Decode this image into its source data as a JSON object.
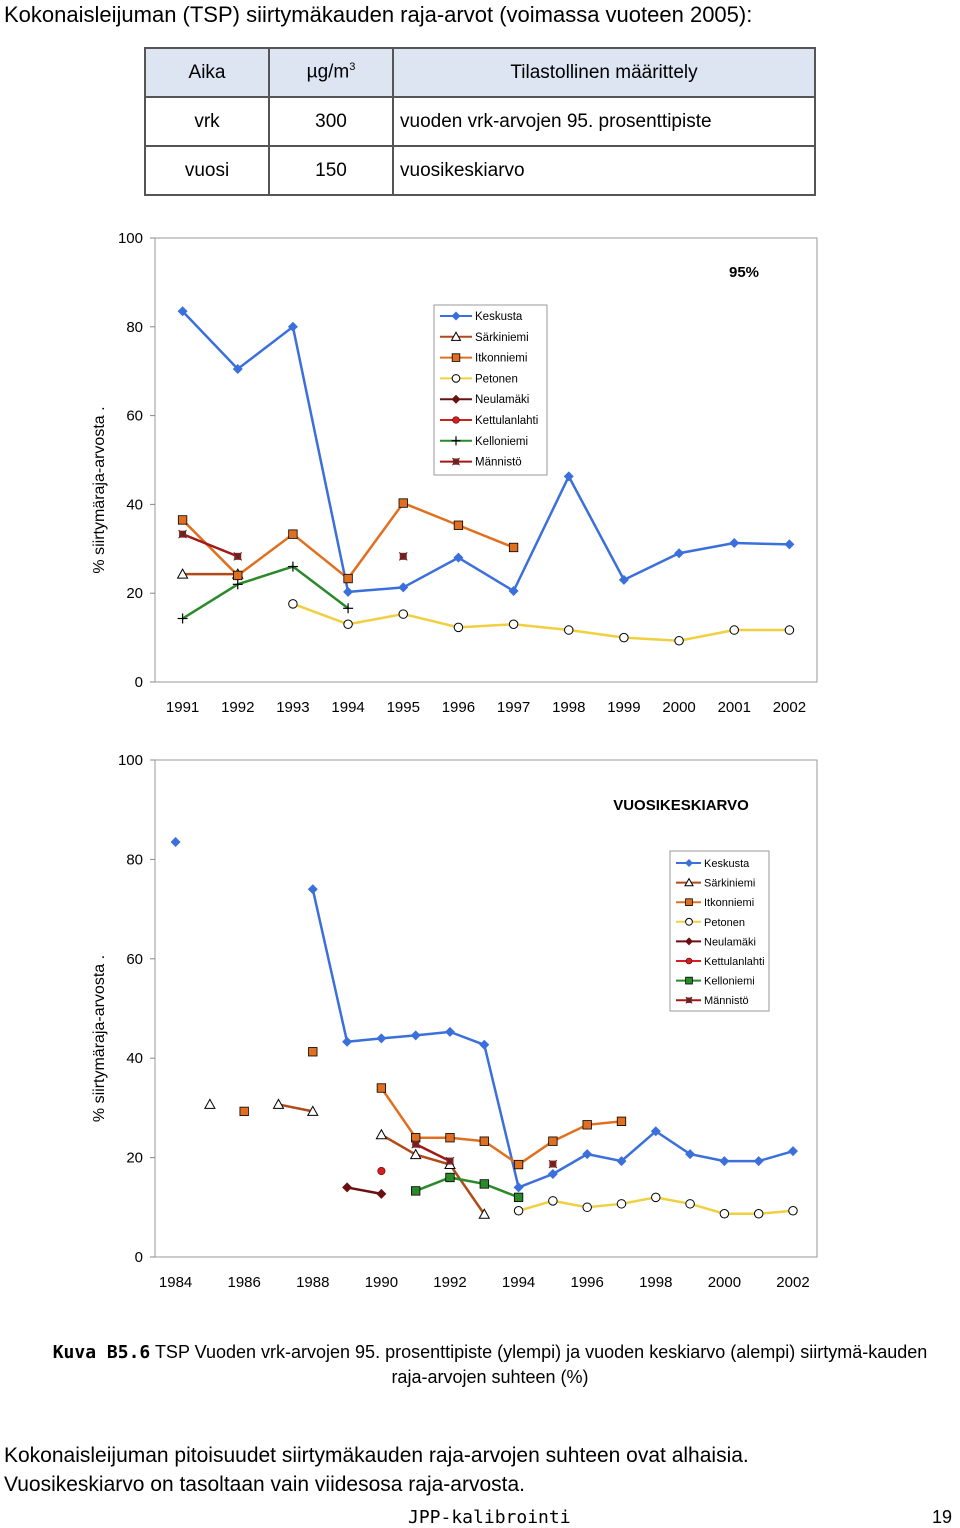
{
  "title": "Kokonaisleijuman (TSP) siirtymäkauden raja-arvot (voimassa vuoteen 2005):",
  "table": {
    "header": {
      "col1": "Aika",
      "col2": "µg/m",
      "col2_sup": "3",
      "col3": "Tilastollinen määrittely"
    },
    "rows": [
      {
        "col1": "vrk",
        "col2": "300",
        "col3": "vuoden vrk-arvojen 95. prosenttipiste"
      },
      {
        "col1": "vuosi",
        "col2": "150",
        "col3": "vuosikeskiarvo"
      }
    ]
  },
  "chart_data": [
    {
      "type": "line",
      "annotation": "95%",
      "ylabel": "% siirtymäraja-arvosta .",
      "ylim": [
        0,
        100
      ],
      "yticks": [
        "0",
        "20",
        "40",
        "60",
        "80",
        "100"
      ],
      "categories": [
        "1991",
        "1992",
        "1993",
        "1994",
        "1995",
        "1996",
        "1997",
        "1998",
        "1999",
        "2000",
        "2001",
        "2002"
      ],
      "legend": "top-center",
      "series": [
        {
          "name": "Keskusta",
          "color": "#3a6fdc",
          "marker": "diamond",
          "values": [
            83.5,
            70.5,
            80,
            20.3,
            21.3,
            28,
            20.5,
            46.3,
            23,
            29,
            31.3,
            31
          ]
        },
        {
          "name": "Särkiniemi",
          "color": "#b04a18",
          "marker": "triangle",
          "values": [
            24.3,
            24.3,
            null,
            null,
            null,
            null,
            null,
            null,
            null,
            null,
            null,
            null
          ]
        },
        {
          "name": "Itkonniemi",
          "color": "#e07020",
          "marker": "square",
          "values": [
            36.5,
            24,
            33.3,
            23.3,
            40.3,
            35.3,
            30.3,
            null,
            null,
            null,
            null,
            null
          ]
        },
        {
          "name": "Petonen",
          "color": "#f0d040",
          "marker": "circle",
          "values": [
            null,
            null,
            17.6,
            13,
            15.3,
            12.3,
            13,
            11.7,
            10,
            9.3,
            11.7,
            11.7
          ]
        },
        {
          "name": "Neulamäki",
          "color": "#6a1010",
          "marker": "diamond-dark",
          "values": [
            null,
            null,
            null,
            null,
            null,
            null,
            null,
            null,
            null,
            null,
            null,
            null
          ]
        },
        {
          "name": "Kettulanlahti",
          "color": "#d02020",
          "marker": "dot",
          "values": [
            null,
            null,
            null,
            null,
            null,
            null,
            null,
            null,
            null,
            null,
            null,
            null
          ]
        },
        {
          "name": "Kelloniemi",
          "color": "#2a8a2a",
          "marker": "plus",
          "values": [
            14.3,
            22,
            26,
            16.6,
            null,
            null,
            null,
            null,
            null,
            null,
            null,
            null
          ]
        },
        {
          "name": "Männistö",
          "color": "#a01818",
          "marker": "xmark",
          "values": [
            33.3,
            28.3,
            null,
            null,
            28.3,
            null,
            null,
            null,
            null,
            null,
            null,
            null
          ]
        }
      ]
    },
    {
      "type": "line",
      "annotation": "VUOSIKESKIARVO",
      "ylabel": "% siirtymäraja-arvosta .",
      "ylim": [
        0,
        100
      ],
      "yticks": [
        "0",
        "20",
        "40",
        "60",
        "80",
        "100"
      ],
      "xticks": [
        "1984",
        "1986",
        "1988",
        "1990",
        "1992",
        "1994",
        "1996",
        "1998",
        "2000",
        "2002"
      ],
      "x": [
        1984,
        1985,
        1986,
        1987,
        1988,
        1989,
        1990,
        1991,
        1992,
        1993,
        1994,
        1995,
        1996,
        1997,
        1998,
        1999,
        2000,
        2001,
        2002
      ],
      "legend": "right",
      "series": [
        {
          "name": "Keskusta",
          "color": "#3a6fdc",
          "marker": "diamond",
          "values": [
            83.5,
            null,
            null,
            null,
            74,
            43.3,
            44,
            44.6,
            45.3,
            42.7,
            14,
            16.7,
            20.7,
            19.3,
            25.3,
            20.7,
            19.3,
            19.3,
            21.3
          ]
        },
        {
          "name": "Särkiniemi",
          "color": "#b04a18",
          "marker": "triangle",
          "values": [
            null,
            30.7,
            null,
            30.7,
            29.3,
            null,
            24.6,
            20.6,
            18.6,
            8.6,
            null,
            null,
            null,
            null,
            null,
            null,
            null,
            null,
            null
          ]
        },
        {
          "name": "Itkonniemi",
          "color": "#e07020",
          "marker": "square",
          "values": [
            null,
            null,
            29.3,
            null,
            41.3,
            null,
            34,
            24,
            24,
            23.3,
            18.6,
            23.3,
            26.6,
            27.3,
            null,
            null,
            null,
            null,
            null
          ]
        },
        {
          "name": "Petonen",
          "color": "#f0d040",
          "marker": "circle",
          "values": [
            null,
            null,
            null,
            null,
            null,
            null,
            null,
            null,
            null,
            null,
            9.3,
            11.3,
            10,
            10.7,
            12,
            10.7,
            8.7,
            8.7,
            9.3
          ]
        },
        {
          "name": "Neulamäki",
          "color": "#6a1010",
          "marker": "diamond-dark",
          "values": [
            null,
            null,
            null,
            null,
            null,
            14,
            12.7,
            null,
            null,
            null,
            null,
            null,
            null,
            null,
            null,
            null,
            null,
            null,
            null
          ]
        },
        {
          "name": "Kettulanlahti",
          "color": "#d02020",
          "marker": "dot",
          "values": [
            null,
            null,
            null,
            null,
            null,
            null,
            17.3,
            null,
            null,
            null,
            null,
            null,
            null,
            null,
            null,
            null,
            null,
            null,
            null
          ]
        },
        {
          "name": "Kelloniemi",
          "color": "#2a8a2a",
          "marker": "square-green",
          "values": [
            null,
            null,
            null,
            null,
            null,
            null,
            null,
            13.3,
            16,
            14.7,
            12,
            null,
            null,
            null,
            null,
            null,
            null,
            null,
            null
          ]
        },
        {
          "name": "Männistö",
          "color": "#a01818",
          "marker": "xmark",
          "values": [
            null,
            null,
            null,
            null,
            null,
            null,
            null,
            22.7,
            19.3,
            null,
            null,
            18.7,
            null,
            null,
            null,
            null,
            null,
            null,
            null
          ]
        }
      ]
    }
  ],
  "caption": {
    "label": "Kuva B5.6",
    "text": " TSP Vuoden vrk-arvojen 95. prosenttipiste (ylempi) ja vuoden keskiarvo (alempi) siirtymä-kauden raja-arvojen suhteen (%)"
  },
  "paragraph": {
    "line1": "Kokonaisleijuman pitoisuudet siirtymäkauden raja-arvojen suhteen ovat alhaisia.",
    "line2": "Vuosikeskiarvo on tasoltaan vain viidesosa raja-arvosta."
  },
  "footer": {
    "left": "JPP-kalibrointi",
    "page": "19"
  }
}
